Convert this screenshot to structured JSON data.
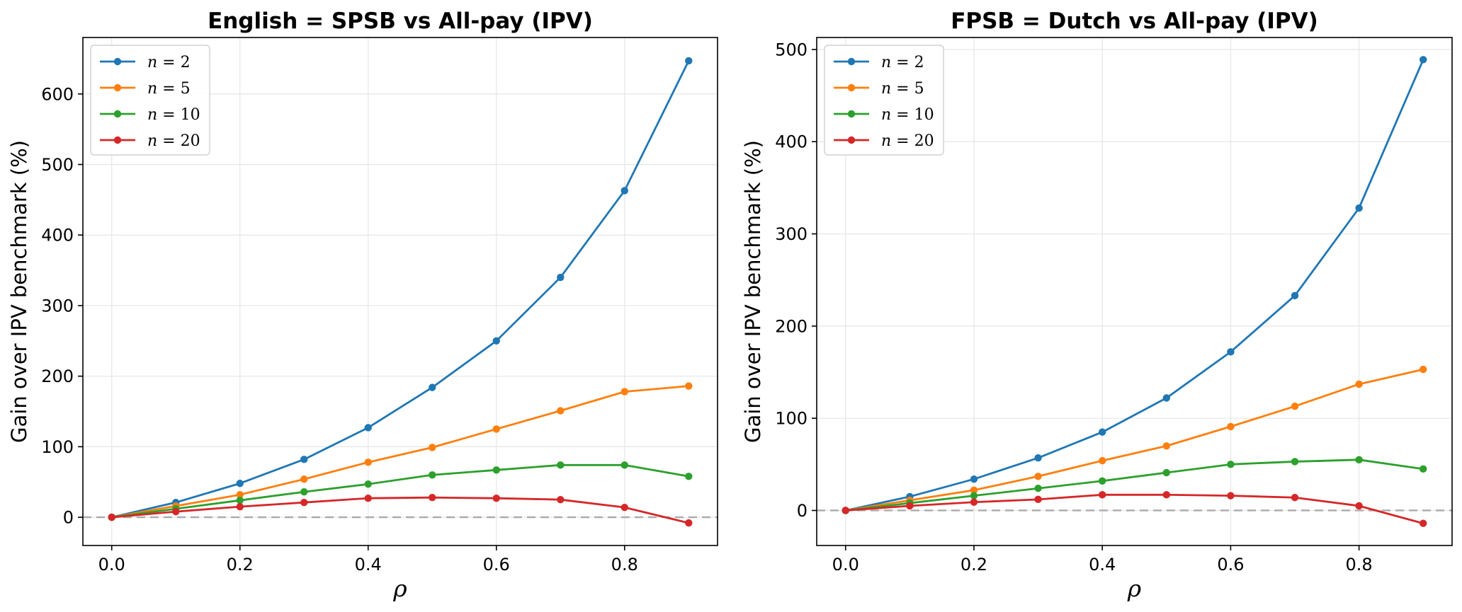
{
  "chart_data": [
    {
      "type": "line",
      "title": "English = SPSB vs All-pay (IPV)",
      "xlabel": "ρ",
      "ylabel": "Gain over IPV benchmark (%)",
      "x": [
        0.0,
        0.1,
        0.2,
        0.3,
        0.4,
        0.5,
        0.6,
        0.7,
        0.8,
        0.9
      ],
      "xlim": [
        -0.045,
        0.945
      ],
      "ylim": [
        -40,
        680
      ],
      "xticks": [
        0.0,
        0.2,
        0.4,
        0.6,
        0.8
      ],
      "xtick_labels": [
        "0.0",
        "0.2",
        "0.4",
        "0.6",
        "0.8"
      ],
      "yticks": [
        0,
        100,
        200,
        300,
        400,
        500,
        600
      ],
      "ytick_labels": [
        "0",
        "100",
        "200",
        "300",
        "400",
        "500",
        "600"
      ],
      "grid": true,
      "legend_position": "top-left",
      "reference_line": 0,
      "series": [
        {
          "name": "n = 2",
          "var": "n",
          "val": "2",
          "color": "#1f77b4",
          "values": [
            0,
            21,
            48,
            82,
            127,
            184,
            250,
            340,
            463,
            647
          ]
        },
        {
          "name": "n = 5",
          "var": "n",
          "val": "5",
          "color": "#ff7f0e",
          "values": [
            0,
            16,
            32,
            54,
            78,
            99,
            125,
            151,
            178,
            186
          ]
        },
        {
          "name": "n = 10",
          "var": "n",
          "val": "10",
          "color": "#2ca02c",
          "values": [
            0,
            12,
            24,
            36,
            47,
            60,
            67,
            74,
            74,
            58
          ]
        },
        {
          "name": "n = 20",
          "var": "n",
          "val": "20",
          "color": "#d62728",
          "values": [
            0,
            8,
            15,
            21,
            27,
            28,
            27,
            25,
            14,
            -8
          ]
        }
      ]
    },
    {
      "type": "line",
      "title": "FPSB = Dutch vs All-pay (IPV)",
      "xlabel": "ρ",
      "ylabel": "Gain over IPV benchmark (%)",
      "x": [
        0.0,
        0.1,
        0.2,
        0.3,
        0.4,
        0.5,
        0.6,
        0.7,
        0.8,
        0.9
      ],
      "xlim": [
        -0.045,
        0.945
      ],
      "ylim": [
        -38,
        513
      ],
      "xticks": [
        0.0,
        0.2,
        0.4,
        0.6,
        0.8
      ],
      "xtick_labels": [
        "0.0",
        "0.2",
        "0.4",
        "0.6",
        "0.8"
      ],
      "yticks": [
        0,
        100,
        200,
        300,
        400,
        500
      ],
      "ytick_labels": [
        "0",
        "100",
        "200",
        "300",
        "400",
        "500"
      ],
      "grid": true,
      "legend_position": "top-left",
      "reference_line": 0,
      "series": [
        {
          "name": "n = 2",
          "var": "n",
          "val": "2",
          "color": "#1f77b4",
          "values": [
            0,
            15,
            34,
            57,
            85,
            122,
            172,
            233,
            328,
            489
          ]
        },
        {
          "name": "n = 5",
          "var": "n",
          "val": "5",
          "color": "#ff7f0e",
          "values": [
            0,
            11,
            22,
            37,
            54,
            70,
            91,
            113,
            137,
            153
          ]
        },
        {
          "name": "n = 10",
          "var": "n",
          "val": "10",
          "color": "#2ca02c",
          "values": [
            0,
            8,
            16,
            24,
            32,
            41,
            50,
            53,
            55,
            45
          ]
        },
        {
          "name": "n = 20",
          "var": "n",
          "val": "20",
          "color": "#d62728",
          "values": [
            0,
            5,
            9,
            12,
            17,
            17,
            16,
            14,
            5,
            -14
          ]
        }
      ]
    }
  ]
}
